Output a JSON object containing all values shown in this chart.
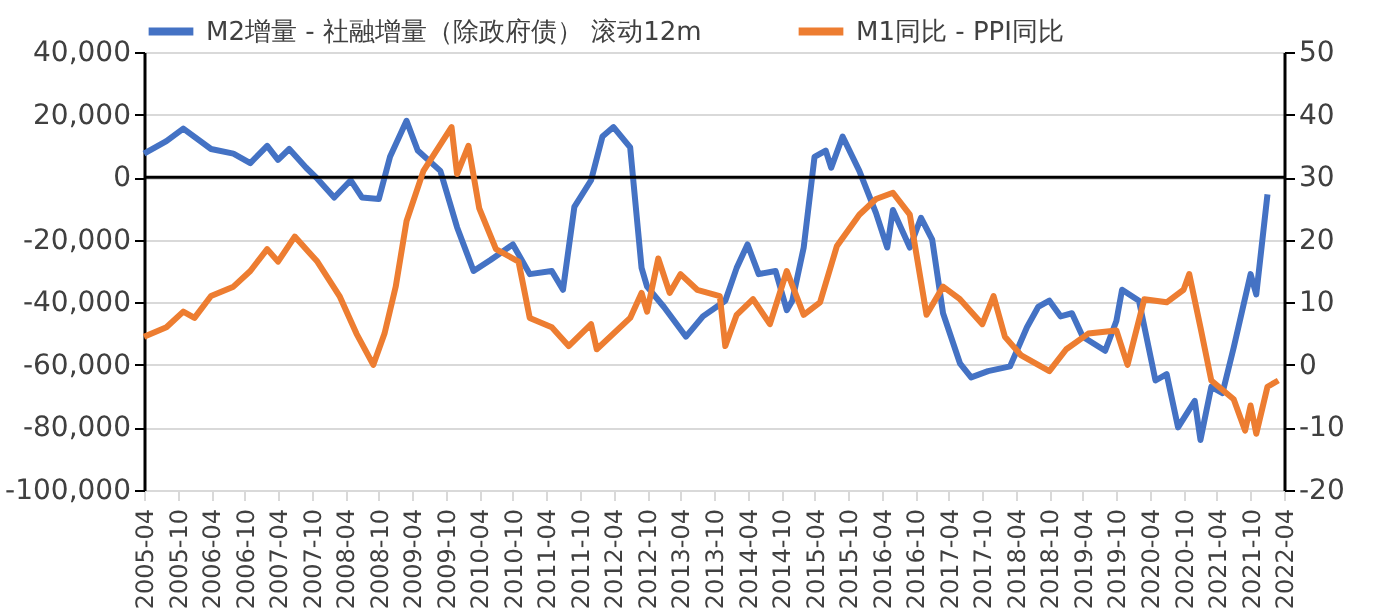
{
  "chart_data": {
    "type": "line",
    "legend": "top",
    "grid": "y",
    "marker": "none",
    "line_style": "solid",
    "xlim": [
      "2005-04",
      "2022-04"
    ],
    "xticks": [
      "2005-04",
      "2005-10",
      "2006-04",
      "2006-10",
      "2007-04",
      "2007-10",
      "2008-04",
      "2008-10",
      "2009-04",
      "2009-10",
      "2010-04",
      "2010-10",
      "2011-04",
      "2011-10",
      "2012-04",
      "2012-10",
      "2013-04",
      "2013-10",
      "2014-04",
      "2014-10",
      "2015-04",
      "2015-10",
      "2016-04",
      "2016-10",
      "2017-04",
      "2017-10",
      "2018-04",
      "2018-10",
      "2019-04",
      "2019-10",
      "2020-04",
      "2020-10",
      "2021-04",
      "2021-10",
      "2022-04"
    ],
    "ylim": [
      -100000,
      40000
    ],
    "yticks": [
      {
        "value": -100000,
        "label": "-100,000"
      },
      {
        "value": -80000,
        "label": "-80,000"
      },
      {
        "value": -60000,
        "label": "-60,000"
      },
      {
        "value": -40000,
        "label": "-40,000"
      },
      {
        "value": -20000,
        "label": "-20,000"
      },
      0,
      {
        "value": 20000,
        "label": "20,000"
      },
      {
        "value": 40000,
        "label": "40,000"
      }
    ],
    "y2lim": [
      -20,
      50
    ],
    "y2ticks": [
      -20,
      -10,
      0,
      10,
      20,
      30,
      40,
      50
    ],
    "ref_lines": [
      {
        "axis": "y",
        "value": 0,
        "color": "#000000"
      }
    ],
    "series": [
      {
        "name": "M2增量 - 社融增量（除政府债） 滚动12m",
        "color": "#4472c4",
        "x": [
          "2005-04",
          "2005-08",
          "2005-11",
          "2006-04",
          "2006-08",
          "2006-11",
          "2007-02",
          "2007-04",
          "2007-06",
          "2007-09",
          "2007-11",
          "2008-02",
          "2008-05",
          "2008-07",
          "2008-10",
          "2008-12",
          "2009-03",
          "2009-05",
          "2009-09",
          "2009-12",
          "2010-03",
          "2010-06",
          "2010-10",
          "2011-01",
          "2011-05",
          "2011-07",
          "2011-09",
          "2011-12",
          "2012-02",
          "2012-04",
          "2012-07",
          "2012-09",
          "2012-10",
          "2013-01",
          "2013-05",
          "2013-08",
          "2013-12",
          "2014-02",
          "2014-04",
          "2014-06",
          "2014-09",
          "2014-11",
          "2014-12",
          "2015-02",
          "2015-04",
          "2015-06",
          "2015-07",
          "2015-09",
          "2015-12",
          "2016-03",
          "2016-05",
          "2016-06",
          "2016-09",
          "2016-11",
          "2017-01",
          "2017-03",
          "2017-06",
          "2017-08",
          "2017-11",
          "2018-03",
          "2018-06",
          "2018-08",
          "2018-10",
          "2018-12",
          "2019-02",
          "2019-04",
          "2019-08",
          "2019-10",
          "2019-11",
          "2020-02",
          "2020-05",
          "2020-07",
          "2020-09",
          "2020-12",
          "2021-01",
          "2021-03",
          "2021-05",
          "2021-07",
          "2021-10",
          "2021-11",
          "2022-01"
        ],
        "values": [
          7500,
          11500,
          15500,
          9000,
          7500,
          4500,
          10000,
          5500,
          9000,
          3000,
          -500,
          -6500,
          -1000,
          -6500,
          -7000,
          6500,
          18000,
          8500,
          2000,
          -16000,
          -30000,
          -26500,
          -21500,
          -31000,
          -30000,
          -36000,
          -9500,
          -1000,
          13000,
          16000,
          9500,
          -29000,
          -35000,
          -41500,
          -51000,
          -44500,
          -39500,
          -29000,
          -21500,
          -31000,
          -30000,
          -42500,
          -39500,
          -22500,
          6500,
          8500,
          3000,
          13000,
          2000,
          -11500,
          -22500,
          -10500,
          -22500,
          -13000,
          -20000,
          -43500,
          -59500,
          -64000,
          -62000,
          -60500,
          -48000,
          -41500,
          -39500,
          -44500,
          -43500,
          -51000,
          -55500,
          -46000,
          -36000,
          -39500,
          -65000,
          -63000,
          -80000,
          -71500,
          -84000,
          -67000,
          -69000,
          -54500,
          -31000,
          -37500,
          -5500
        ]
      },
      {
        "name": "M1同比 - PPI同比",
        "color": "#ed7d31",
        "axis": "y2",
        "x": [
          "2005-04",
          "2005-08",
          "2005-11",
          "2006-01",
          "2006-04",
          "2006-08",
          "2006-11",
          "2007-02",
          "2007-04",
          "2007-07",
          "2007-11",
          "2008-03",
          "2008-06",
          "2008-09",
          "2008-11",
          "2009-01",
          "2009-03",
          "2009-06",
          "2009-11",
          "2009-12",
          "2010-02",
          "2010-04",
          "2010-07",
          "2010-11",
          "2011-01",
          "2011-05",
          "2011-08",
          "2011-12",
          "2012-01",
          "2012-07",
          "2012-09",
          "2012-10",
          "2012-12",
          "2013-02",
          "2013-04",
          "2013-07",
          "2013-11",
          "2013-12",
          "2014-02",
          "2014-05",
          "2014-08",
          "2014-11",
          "2015-02",
          "2015-05",
          "2015-08",
          "2015-12",
          "2016-03",
          "2016-06",
          "2016-09",
          "2016-12",
          "2017-03",
          "2017-06",
          "2017-10",
          "2017-12",
          "2018-02",
          "2018-05",
          "2018-10",
          "2019-01",
          "2019-05",
          "2019-10",
          "2019-12",
          "2020-03",
          "2020-07",
          "2020-10",
          "2020-11",
          "2021-01",
          "2021-03",
          "2021-07",
          "2021-09",
          "2021-10",
          "2021-11",
          "2022-01",
          "2022-03"
        ],
        "values": [
          4.5,
          6,
          8.5,
          7.5,
          11,
          12.5,
          15,
          18.5,
          16.5,
          20.5,
          16.5,
          11,
          5,
          0,
          5,
          12.5,
          23,
          31,
          38,
          30.5,
          35,
          25,
          18.5,
          16.5,
          7.5,
          6,
          3,
          6.5,
          2.5,
          7.5,
          11.5,
          8.5,
          17,
          11.5,
          14.5,
          12,
          11,
          3,
          8,
          10.5,
          6.5,
          15,
          8,
          10,
          19,
          24,
          26.5,
          27.5,
          24,
          8,
          12.5,
          10.5,
          6.5,
          11,
          4.5,
          1.5,
          -1,
          2.5,
          5,
          5.5,
          0,
          10.5,
          10,
          12,
          14.5,
          6,
          -2.5,
          -5.5,
          -10.5,
          -6.5,
          -11,
          -3.5,
          -2.5
        ]
      }
    ]
  }
}
